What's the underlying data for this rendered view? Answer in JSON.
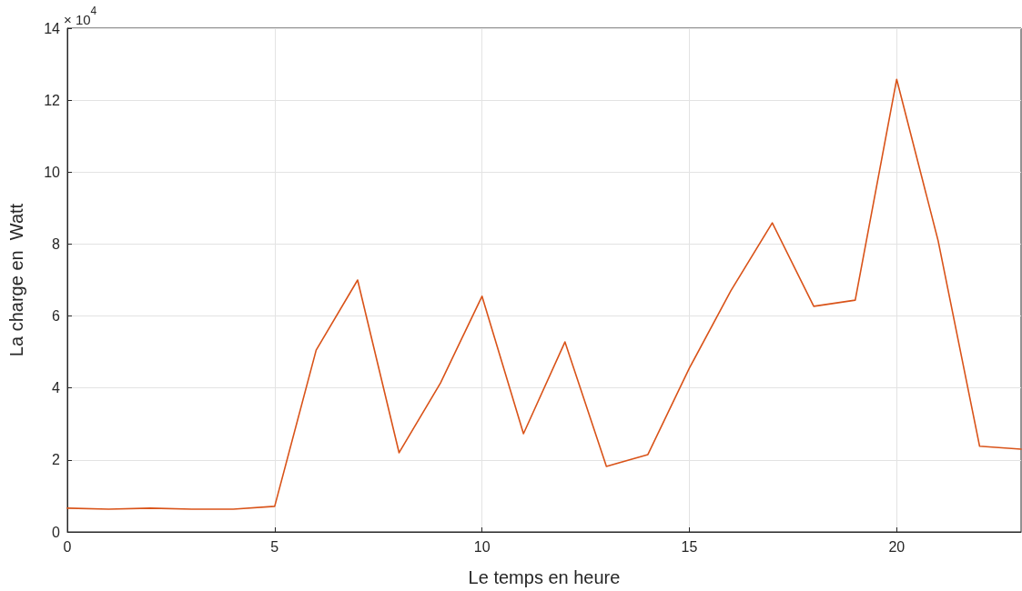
{
  "chart_data": {
    "type": "line",
    "xlabel": "Le temps en heure",
    "ylabel": "La charge en  Watt",
    "annotations": [
      "× 10$^{4}$"
    ],
    "x": [
      0,
      1,
      2,
      3,
      4,
      5,
      6,
      7,
      8,
      9,
      10,
      11,
      12,
      13,
      14,
      15,
      16,
      17,
      18,
      19,
      20,
      21,
      22,
      23
    ],
    "series": [
      {
        "color": "#d95319",
        "values": [
          0.66,
          0.63,
          0.66,
          0.63,
          0.63,
          0.71,
          5.05,
          7.0,
          2.2,
          4.14,
          6.55,
          2.73,
          5.28,
          1.82,
          2.15,
          4.55,
          6.7,
          8.59,
          6.27,
          6.44,
          12.58,
          8.09,
          2.38,
          2.3
        ]
      }
    ],
    "xlim": [
      0,
      23
    ],
    "xticks": [
      0,
      5,
      10,
      15,
      20
    ],
    "ylim": [
      0,
      14
    ],
    "yticks": [
      0,
      2,
      4,
      6,
      8,
      10,
      12,
      14
    ],
    "grid": true,
    "marker": "none",
    "line_style": "solid"
  }
}
